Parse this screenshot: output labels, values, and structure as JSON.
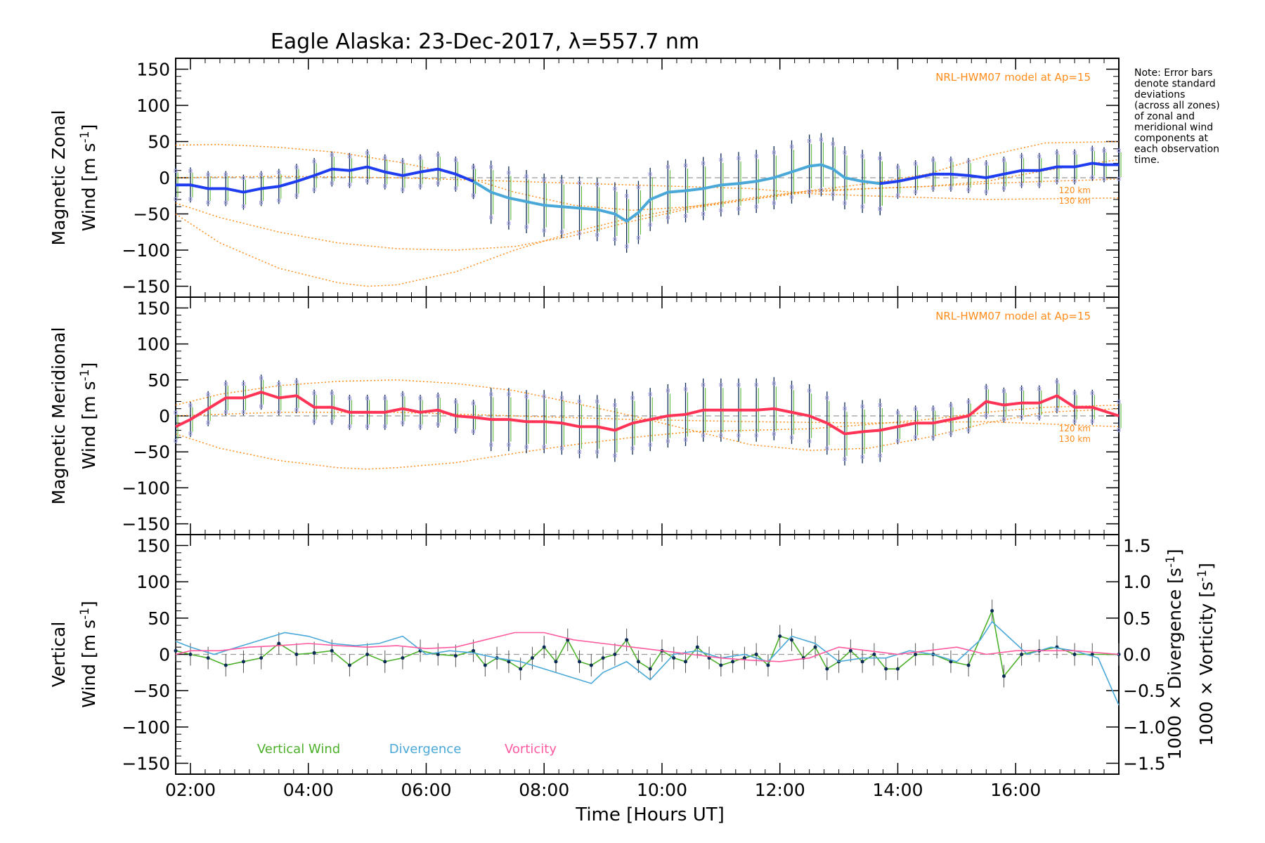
{
  "title": "Eagle Alaska: 23-Dec-2017, λ=557.7 nm",
  "note_lines": [
    "Note: Error bars",
    "denote standard",
    "deviations",
    "(across all zones)",
    "of zonal and",
    "meridional wind",
    "components at",
    "each observation",
    "time."
  ],
  "xaxis": {
    "label": "Time [Hours UT]",
    "range": [
      1.75,
      17.75
    ],
    "ticks": [
      2,
      4,
      6,
      8,
      10,
      12,
      14,
      16
    ],
    "tick_labels": [
      "02:00",
      "04:00",
      "06:00",
      "08:00",
      "10:00",
      "12:00",
      "14:00",
      "16:00"
    ]
  },
  "colors": {
    "blue": "#1f3df0",
    "cyan": "#4aa8d8",
    "red": "#ff3355",
    "pink": "#ff5aa0",
    "green": "#4db02a",
    "navy": "#0b2a55",
    "lavender": "#a9a3e6",
    "orange": "#ff8c1a",
    "dashed": "#9a9a9a"
  },
  "chart_data": [
    {
      "type": "line",
      "panel": "zonal",
      "ylabel_line1": "Magnetic Zonal",
      "ylabel_line2": "Wind [m s",
      "ylabel_sup": "-1",
      "ylabel_end": "]",
      "ylim": [
        -165,
        165
      ],
      "yticks": [
        -150,
        -100,
        -50,
        0,
        50,
        100,
        150
      ],
      "ytick_labels": [
        "−150",
        "−100",
        "−50",
        "0",
        "50",
        "100",
        "150"
      ],
      "model_label": "NRL-HWM07 model at Ap=15",
      "alt_labels": [
        "120 km",
        "130 km"
      ],
      "series": [
        {
          "color_key": "blue",
          "x": [
            1.75,
            2.0,
            2.3,
            2.6,
            2.9,
            3.2,
            3.5,
            3.8,
            4.1,
            4.4,
            4.7,
            5.0,
            5.3,
            5.6,
            5.9,
            6.2,
            6.5,
            6.8
          ],
          "y": [
            -10,
            -10,
            -15,
            -15,
            -20,
            -15,
            -12,
            -5,
            3,
            12,
            10,
            15,
            8,
            3,
            8,
            12,
            5,
            -5
          ]
        },
        {
          "color_key": "cyan",
          "x": [
            6.8,
            7.1,
            7.4,
            7.7,
            8.0,
            8.3,
            8.6,
            8.9,
            9.2,
            9.4,
            9.6,
            9.8,
            10.1,
            10.4,
            10.7,
            11.0,
            11.3,
            11.6,
            11.9,
            12.2,
            12.5,
            12.7,
            12.9,
            13.1,
            13.4,
            13.7
          ],
          "y": [
            -5,
            -20,
            -28,
            -33,
            -38,
            -40,
            -42,
            -44,
            -50,
            -60,
            -48,
            -30,
            -20,
            -18,
            -15,
            -10,
            -8,
            -5,
            0,
            8,
            16,
            18,
            12,
            0,
            -5,
            -8
          ]
        },
        {
          "color_key": "blue",
          "x": [
            13.7,
            14.0,
            14.3,
            14.6,
            14.9,
            15.2,
            15.5,
            15.8,
            16.1,
            16.4,
            16.7,
            17.0,
            17.3,
            17.5,
            17.75
          ],
          "y": [
            -8,
            -5,
            0,
            5,
            5,
            3,
            0,
            5,
            10,
            10,
            15,
            15,
            20,
            18,
            18
          ]
        }
      ],
      "model_curves": [
        {
          "x": [
            1.75,
            2.5,
            3.5,
            4.5,
            5.0,
            5.5,
            6.5,
            7.5,
            8.5,
            9.5,
            10.5,
            11.5,
            12.5,
            13.5,
            14.5,
            15.5,
            16.5,
            17.75
          ],
          "y": [
            -50,
            -90,
            -125,
            -145,
            -150,
            -148,
            -130,
            -100,
            -75,
            -55,
            -40,
            -28,
            -18,
            -15,
            -12,
            -5,
            10,
            25
          ]
        },
        {
          "x": [
            1.75,
            2.5,
            3.5,
            4.5,
            5.5,
            6.5,
            7.5,
            8.5,
            9.5,
            10.5,
            11.5,
            12.5,
            13.5,
            14.5,
            15.5,
            16.5,
            17.75
          ],
          "y": [
            -35,
            -55,
            -75,
            -90,
            -98,
            -100,
            -95,
            -80,
            -60,
            -42,
            -30,
            -20,
            -15,
            -12,
            -8,
            -5,
            -2
          ]
        },
        {
          "x": [
            1.75,
            2.5,
            3.5,
            4.5,
            5.5,
            6.5,
            7.5,
            8.5,
            9.5,
            10.5,
            11.5,
            12.5,
            13.5,
            14.5,
            15.5,
            16.5,
            17.75
          ],
          "y": [
            45,
            46,
            42,
            35,
            22,
            5,
            -20,
            -38,
            -45,
            -40,
            -30,
            -18,
            -8,
            5,
            30,
            48,
            50
          ]
        },
        {
          "x": [
            1.75,
            3.5,
            5.5,
            7.5,
            9.5,
            11.5,
            12.5,
            13.5,
            15.5,
            17.75
          ],
          "y": [
            0,
            2,
            0,
            -5,
            -10,
            -15,
            -22,
            -25,
            -30,
            -28
          ]
        }
      ],
      "legend": []
    },
    {
      "type": "line",
      "panel": "meridional",
      "ylabel_line1": "Magnetic Meridional",
      "ylabel_line2": "Wind [m s",
      "ylabel_sup": "-1",
      "ylabel_end": "]",
      "ylim": [
        -165,
        165
      ],
      "yticks": [
        -150,
        -100,
        -50,
        0,
        50,
        100,
        150
      ],
      "ytick_labels": [
        "−150",
        "−100",
        "−50",
        "0",
        "50",
        "100",
        "150"
      ],
      "model_label": "NRL-HWM07 model at Ap=15",
      "alt_labels": [
        "120 km",
        "130 km"
      ],
      "series": [
        {
          "color_key": "red",
          "x": [
            1.75,
            2.0,
            2.3,
            2.6,
            2.9,
            3.2,
            3.5,
            3.8,
            4.1,
            4.4,
            4.7,
            5.0,
            5.3,
            5.6,
            5.9,
            6.2,
            6.5,
            6.8,
            7.1,
            7.4,
            7.7,
            8.0,
            8.3,
            8.6,
            8.9,
            9.2,
            9.5,
            9.8,
            10.1,
            10.4,
            10.7,
            11.0,
            11.3,
            11.6,
            11.9,
            12.2,
            12.5,
            12.8,
            13.1,
            13.4,
            13.7,
            14.0,
            14.3,
            14.6,
            14.9,
            15.2,
            15.5,
            15.8,
            16.1,
            16.4,
            16.7,
            17.0,
            17.3,
            17.75
          ],
          "y": [
            -15,
            -5,
            10,
            25,
            25,
            33,
            25,
            28,
            12,
            12,
            5,
            5,
            5,
            10,
            5,
            8,
            0,
            -2,
            -5,
            -5,
            -8,
            -8,
            -10,
            -15,
            -15,
            -20,
            -10,
            -5,
            0,
            2,
            8,
            8,
            8,
            8,
            10,
            5,
            0,
            -10,
            -25,
            -22,
            -20,
            -15,
            -10,
            -10,
            -5,
            0,
            20,
            15,
            18,
            18,
            28,
            12,
            12,
            0
          ]
        }
      ],
      "model_curves": [
        {
          "x": [
            1.75,
            2.5,
            3.5,
            4.5,
            5.0,
            5.5,
            6.5,
            7.5,
            8.5,
            9.5,
            10.5,
            11.5,
            12.5,
            13.5,
            14.5,
            15.5,
            16.5,
            17.75
          ],
          "y": [
            -25,
            -45,
            -62,
            -72,
            -74,
            -72,
            -65,
            -52,
            -40,
            -30,
            -22,
            -20,
            -18,
            -12,
            -5,
            5,
            12,
            15
          ]
        },
        {
          "x": [
            1.75,
            2.5,
            3.5,
            4.5,
            5.5,
            6.5,
            7.5,
            8.5,
            9.5,
            10.5,
            11.5,
            12.5,
            13.5,
            14.5,
            15.5,
            16.5,
            17.75
          ],
          "y": [
            15,
            30,
            42,
            48,
            50,
            45,
            35,
            18,
            0,
            -20,
            -40,
            -48,
            -45,
            -30,
            -10,
            5,
            10
          ]
        },
        {
          "x": [
            1.75,
            3.5,
            5.5,
            7.5,
            9.5,
            11.5,
            13.5,
            15.5,
            17.75
          ],
          "y": [
            0,
            5,
            5,
            0,
            -5,
            -8,
            -10,
            -8,
            -15
          ]
        }
      ],
      "legend": []
    },
    {
      "type": "line",
      "panel": "vertical",
      "ylabel_line1": "Vertical",
      "ylabel_line2": "Wind [m s",
      "ylabel_sup": "-1",
      "ylabel_end": "]",
      "ylim": [
        -165,
        165
      ],
      "yticks": [
        -150,
        -100,
        -50,
        0,
        50,
        100,
        150
      ],
      "ytick_labels": [
        "−150",
        "−100",
        "−50",
        "0",
        "50",
        "100",
        "150"
      ],
      "right_axis": {
        "ylim": [
          -1.65,
          1.65
        ],
        "ticks": [
          -1.5,
          -1.0,
          -0.5,
          0.0,
          0.5,
          1.0,
          1.5
        ],
        "tick_labels": [
          "−1.5",
          "−1.0",
          "−0.5",
          "0.0",
          "0.5",
          "1.0",
          "1.5"
        ],
        "label1_prefix": "1000 × Divergence [s",
        "label2_prefix": "1000 × Vorticity [s",
        "label_sup": "-1",
        "label_end": "]"
      },
      "series": [
        {
          "name": "Vertical Wind",
          "color_key": "green",
          "x": [
            1.75,
            2.0,
            2.3,
            2.6,
            2.9,
            3.2,
            3.5,
            3.8,
            4.1,
            4.4,
            4.7,
            5.0,
            5.3,
            5.6,
            5.9,
            6.2,
            6.5,
            6.8,
            7.0,
            7.2,
            7.4,
            7.6,
            7.8,
            8.0,
            8.2,
            8.4,
            8.6,
            8.8,
            9.0,
            9.2,
            9.4,
            9.6,
            9.8,
            10.0,
            10.2,
            10.4,
            10.6,
            10.8,
            11.0,
            11.2,
            11.4,
            11.6,
            11.8,
            12.0,
            12.2,
            12.4,
            12.6,
            12.8,
            13.0,
            13.2,
            13.4,
            13.6,
            13.8,
            14.0,
            14.3,
            14.6,
            14.9,
            15.2,
            15.6,
            15.8,
            16.1,
            16.4,
            16.7,
            17.0,
            17.3,
            17.75
          ],
          "y": [
            5,
            0,
            -5,
            -15,
            -10,
            -5,
            15,
            0,
            2,
            5,
            -15,
            0,
            -10,
            -5,
            5,
            0,
            -2,
            5,
            -15,
            -5,
            -10,
            -20,
            -5,
            10,
            -10,
            20,
            -10,
            -15,
            -5,
            0,
            20,
            -10,
            -20,
            5,
            -5,
            -10,
            10,
            -5,
            -15,
            -10,
            -5,
            0,
            -15,
            25,
            20,
            -5,
            10,
            -20,
            -10,
            5,
            -10,
            0,
            -20,
            -20,
            0,
            0,
            -10,
            -15,
            60,
            -30,
            0,
            5,
            10,
            0,
            0,
            0
          ]
        },
        {
          "name": "Divergence",
          "color_key": "cyan",
          "x": [
            1.75,
            2.0,
            2.4,
            2.8,
            3.2,
            3.6,
            4.0,
            4.4,
            4.8,
            5.2,
            5.6,
            6.0,
            6.4,
            6.8,
            7.2,
            7.6,
            8.0,
            8.4,
            8.8,
            9.0,
            9.4,
            9.8,
            10.2,
            10.6,
            11.0,
            11.4,
            11.8,
            12.2,
            12.6,
            13.0,
            13.4,
            13.8,
            14.2,
            14.6,
            15.0,
            15.4,
            15.6,
            15.8,
            16.2,
            16.6,
            17.0,
            17.4,
            17.75
          ],
          "y": [
            0.18,
            0.1,
            0.0,
            0.1,
            0.2,
            0.3,
            0.25,
            0.15,
            0.12,
            0.15,
            0.25,
            0.0,
            0.05,
            0.02,
            -0.05,
            -0.1,
            -0.2,
            -0.3,
            -0.4,
            -0.25,
            -0.1,
            -0.35,
            0.0,
            0.05,
            -0.05,
            0.0,
            -0.1,
            0.25,
            0.15,
            -0.1,
            -0.05,
            -0.05,
            0.05,
            0.0,
            -0.1,
            0.2,
            0.45,
            0.3,
            0.0,
            0.1,
            0.05,
            -0.05,
            -0.7
          ]
        },
        {
          "name": "Vorticity",
          "color_key": "pink",
          "x": [
            1.75,
            2.0,
            2.5,
            3.0,
            3.5,
            4.0,
            4.5,
            5.0,
            5.5,
            6.0,
            6.5,
            7.0,
            7.5,
            8.0,
            8.5,
            9.0,
            9.5,
            10.0,
            10.5,
            11.0,
            11.5,
            12.0,
            12.5,
            13.0,
            13.5,
            14.0,
            14.5,
            15.0,
            15.5,
            16.0,
            16.5,
            17.0,
            17.75
          ],
          "y": [
            0.0,
            0.05,
            0.05,
            0.1,
            0.12,
            0.15,
            0.12,
            0.1,
            0.12,
            0.08,
            0.1,
            0.2,
            0.3,
            0.3,
            0.2,
            0.15,
            0.1,
            0.05,
            0.0,
            -0.05,
            -0.08,
            -0.1,
            -0.05,
            0.1,
            0.05,
            0.0,
            0.05,
            0.1,
            0.0,
            0.05,
            0.05,
            0.05,
            0.0
          ]
        }
      ],
      "legend": [
        "Vertical Wind",
        "Divergence",
        "Vorticity"
      ]
    }
  ]
}
